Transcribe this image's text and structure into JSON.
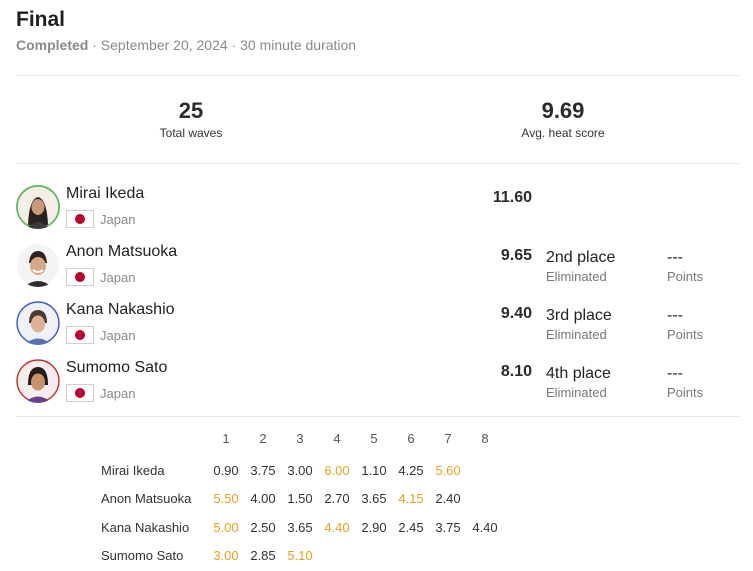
{
  "heat": {
    "title": "Final",
    "status": "Completed",
    "date": "September 20, 2024",
    "duration": "30 minute duration",
    "separator": "·"
  },
  "stats": {
    "total_waves": "25",
    "total_waves_label": "Total waves",
    "avg_score": "9.69",
    "avg_score_label": "Avg. heat score"
  },
  "colors": {
    "highlight_score": "#e8a21e",
    "flag_red": "#bc002d",
    "ring_green": "#5cb85c",
    "ring_blue": "#3f5bd6",
    "ring_red": "#c0392b"
  },
  "surfers": [
    {
      "name": "Mirai Ikeda",
      "country": "Japan",
      "score": "11.60",
      "place": "",
      "place_status": "",
      "points": "",
      "points_label": "",
      "ring": "green"
    },
    {
      "name": "Anon Matsuoka",
      "country": "Japan",
      "score": "9.65",
      "place": "2nd place",
      "place_status": "Eliminated",
      "points": "---",
      "points_label": "Points",
      "ring": "none"
    },
    {
      "name": "Kana Nakashio",
      "country": "Japan",
      "score": "9.40",
      "place": "3rd place",
      "place_status": "Eliminated",
      "points": "---",
      "points_label": "Points",
      "ring": "blue"
    },
    {
      "name": "Sumomo Sato",
      "country": "Japan",
      "score": "8.10",
      "place": "4th place",
      "place_status": "Eliminated",
      "points": "---",
      "points_label": "Points",
      "ring": "red"
    }
  ],
  "wave_table": {
    "headers": [
      "1",
      "2",
      "3",
      "4",
      "5",
      "6",
      "7",
      "8"
    ],
    "rows": [
      {
        "name": "Mirai Ikeda",
        "scores": [
          "0.90",
          "3.75",
          "3.00",
          "6.00",
          "1.10",
          "4.25",
          "5.60"
        ],
        "highlighted": [
          3,
          6
        ]
      },
      {
        "name": "Anon Matsuoka",
        "scores": [
          "5.50",
          "4.00",
          "1.50",
          "2.70",
          "3.65",
          "4.15",
          "2.40"
        ],
        "highlighted": [
          0,
          5
        ]
      },
      {
        "name": "Kana Nakashio",
        "scores": [
          "5.00",
          "2.50",
          "3.65",
          "4.40",
          "2.90",
          "2.45",
          "3.75",
          "4.40"
        ],
        "highlighted": [
          0,
          3
        ]
      },
      {
        "name": "Sumomo Sato",
        "scores": [
          "3.00",
          "2.85",
          "5.10"
        ],
        "highlighted": [
          0,
          2
        ]
      }
    ]
  }
}
